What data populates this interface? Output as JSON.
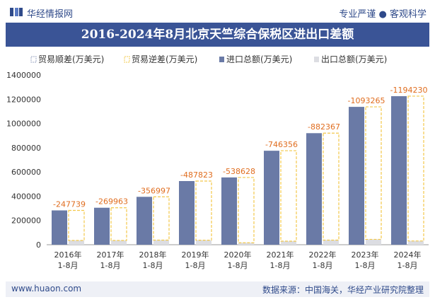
{
  "header": {
    "brand": "华经情报网",
    "tagline": "专业严谨 ● 客观科学"
  },
  "footer": {
    "left": "www.huaon.com",
    "right": "数据来源：中国海关，华经产业研究院整理"
  },
  "colors": {
    "title_bg": "#3a5496",
    "import_bar": "#6a7aa6",
    "export_bar": "#dcdde2",
    "deficit_outline": "#f2c84b",
    "label_color": "#e06d1f",
    "brand": "#2f4a8a"
  },
  "chart_data": {
    "type": "bar",
    "title": "2016-2024年8月北京天竺综合保税区进出口差额",
    "categories": [
      "2016年\n1-8月",
      "2017年\n1-8月",
      "2018年\n1-8月",
      "2019年\n1-8月",
      "2020年\n1-8月",
      "2021年\n1-8月",
      "2022年\n1-8月",
      "2023年\n1-8月",
      "2024年\n1-8月"
    ],
    "series": [
      {
        "name": "贸易顺差(万美元)",
        "values": [
          0,
          0,
          0,
          0,
          0,
          0,
          0,
          0,
          0
        ]
      },
      {
        "name": "贸易逆差(万美元)",
        "values": [
          -247739,
          -269963,
          -356997,
          -487823,
          -538628,
          -746356,
          -882367,
          -1093265,
          -1194230
        ]
      },
      {
        "name": "进口总额(万美元)",
        "values": [
          283000,
          305000,
          395000,
          525000,
          555000,
          775000,
          920000,
          1137000,
          1225000
        ]
      },
      {
        "name": "出口总额(万美元)",
        "values": [
          35000,
          35000,
          38000,
          37000,
          16000,
          29000,
          38000,
          44000,
          31000
        ]
      }
    ],
    "data_labels": [
      "-247739",
      "-269963",
      "-356997",
      "-487823",
      "-538628",
      "-746356",
      "-882367",
      "-1093265",
      "-1194230"
    ],
    "yticks": [
      "0",
      "200000",
      "400000",
      "600000",
      "800000",
      "1000000",
      "1200000",
      "1400000"
    ],
    "ylim": [
      0,
      1400000
    ],
    "legend": "top",
    "grid": false
  }
}
